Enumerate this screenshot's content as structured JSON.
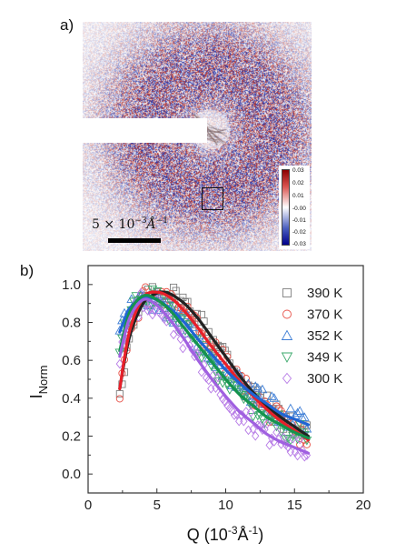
{
  "panels": {
    "a_label": "a)",
    "b_label": "b)"
  },
  "detector": {
    "colorbar_ticks": [
      "0.03",
      "0.02",
      "0.01",
      "-0.00",
      "-0.01",
      "-0.02",
      "-0.03"
    ],
    "colorbar_colors": [
      "#8b0000",
      "#ffffff",
      "#00008b"
    ],
    "scalebar_text": "5 × 10",
    "scalebar_exp": "−3",
    "scalebar_unit": "Å",
    "scalebar_unit_exp": "−1"
  },
  "chart_data": {
    "type": "scatter",
    "xlabel": "Q (10",
    "xlabel_exp": "-3",
    "xlabel_unit": "Å",
    "xlabel_unit_exp": "-1",
    "xlabel_close": ")",
    "ylabel": "I",
    "ylabel_sub": "Norm",
    "xlim": [
      0,
      20
    ],
    "ylim": [
      -0.1,
      1.1
    ],
    "xticks": [
      "0",
      "5",
      "10",
      "15",
      "20"
    ],
    "xtick_values": [
      0,
      5,
      10,
      15,
      20
    ],
    "yticks": [
      "0.0",
      "0.2",
      "0.4",
      "0.6",
      "0.8",
      "1.0"
    ],
    "ytick_values": [
      0.0,
      0.2,
      0.4,
      0.6,
      0.8,
      1.0
    ],
    "legend_position": "top-right",
    "series": [
      {
        "name": "390 K",
        "marker": "square",
        "color": "#7f7f7f",
        "fit_color": "#222222",
        "fit_x": [
          2.3,
          3,
          4,
          5,
          5.5,
          6,
          7,
          8,
          9,
          10,
          11,
          12,
          13,
          14,
          15,
          16
        ],
        "fit_y": [
          0.45,
          0.72,
          0.9,
          0.955,
          0.96,
          0.95,
          0.9,
          0.82,
          0.72,
          0.62,
          0.52,
          0.43,
          0.36,
          0.3,
          0.25,
          0.2
        ],
        "peak": 5.5,
        "width": 3.3,
        "noise": 0.06
      },
      {
        "name": "370 K",
        "marker": "circle",
        "color": "#e8534a",
        "fit_color": "#e8202a",
        "fit_x": [
          2.3,
          3,
          4,
          5,
          6,
          7,
          8,
          9,
          10,
          11,
          12,
          13,
          14,
          15,
          16
        ],
        "fit_y": [
          0.45,
          0.75,
          0.93,
          0.96,
          0.93,
          0.86,
          0.77,
          0.67,
          0.58,
          0.49,
          0.41,
          0.34,
          0.28,
          0.23,
          0.18
        ],
        "peak": 5.0,
        "width": 3.2,
        "noise": 0.06
      },
      {
        "name": "352 K",
        "marker": "triangle-up",
        "color": "#3f7fd6",
        "fit_color": "#1f64d4",
        "fit_x": [
          2.3,
          3,
          4,
          5,
          6,
          7,
          8,
          9,
          10,
          11,
          12,
          13,
          14,
          15,
          16
        ],
        "fit_y": [
          0.75,
          0.87,
          0.93,
          0.92,
          0.87,
          0.8,
          0.71,
          0.63,
          0.55,
          0.48,
          0.42,
          0.37,
          0.32,
          0.29,
          0.26
        ],
        "peak": 4.2,
        "width": 4.0,
        "noise": 0.06
      },
      {
        "name": "349 K",
        "marker": "triangle-down",
        "color": "#3aa86b",
        "fit_color": "#15934e",
        "fit_x": [
          2.3,
          3,
          4,
          5,
          6,
          7,
          8,
          9,
          10,
          11,
          12,
          13,
          14,
          15,
          16
        ],
        "fit_y": [
          0.65,
          0.85,
          0.94,
          0.92,
          0.86,
          0.77,
          0.68,
          0.59,
          0.5,
          0.42,
          0.36,
          0.3,
          0.26,
          0.22,
          0.19
        ],
        "peak": 4.3,
        "width": 3.5,
        "noise": 0.06
      },
      {
        "name": "300 K",
        "marker": "diamond",
        "color": "#b77be6",
        "fit_color": "#a060e0",
        "fit_x": [
          2.3,
          3,
          4,
          5,
          6,
          7,
          8,
          9,
          10,
          11,
          12,
          13,
          14,
          15,
          16
        ],
        "fit_y": [
          0.62,
          0.82,
          0.92,
          0.89,
          0.81,
          0.71,
          0.6,
          0.5,
          0.41,
          0.33,
          0.27,
          0.21,
          0.17,
          0.14,
          0.11
        ],
        "peak": 4.0,
        "width": 3.1,
        "noise": 0.06
      }
    ]
  }
}
